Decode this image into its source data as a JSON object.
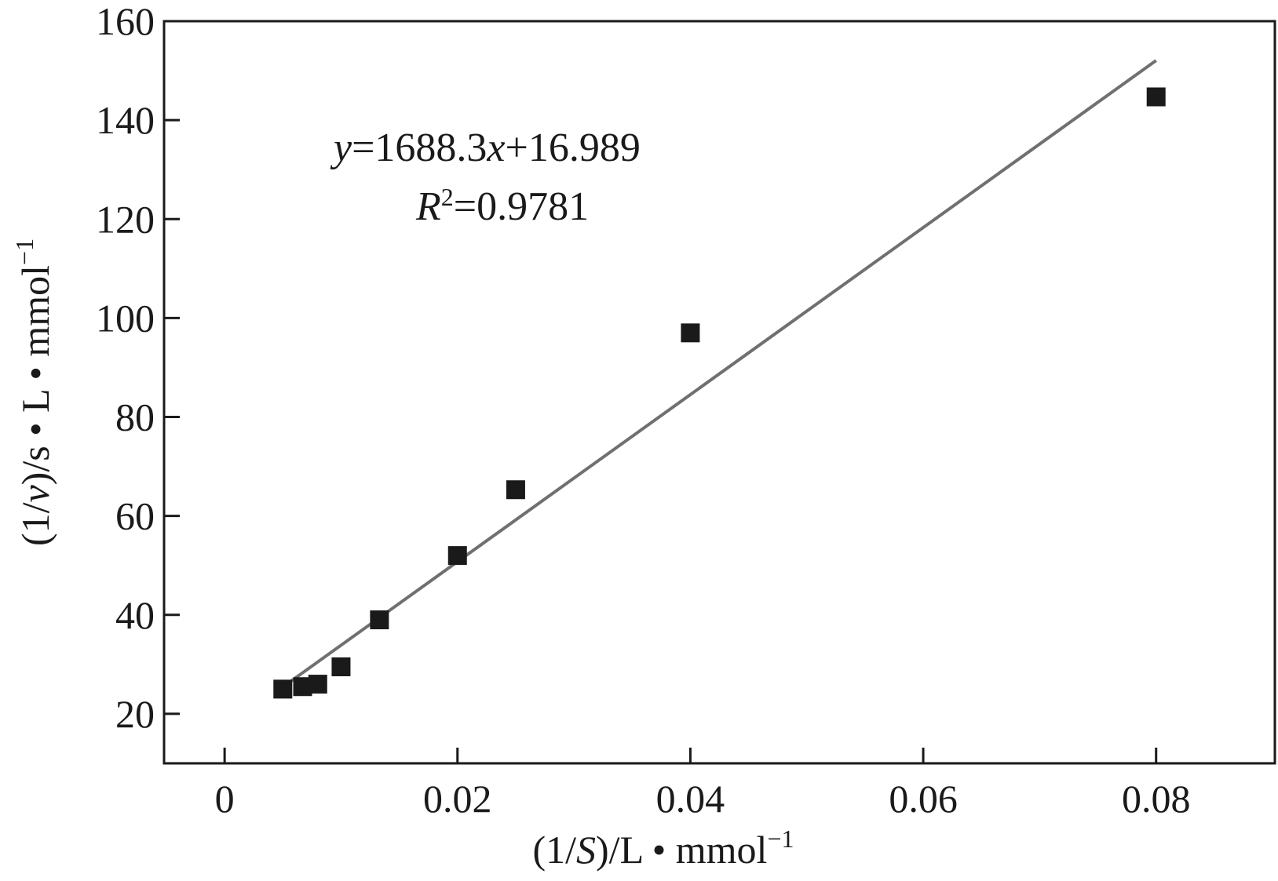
{
  "chart_data": {
    "type": "scatter",
    "xlim": [
      -0.0052,
      0.0902
    ],
    "ylim": [
      10,
      160
    ],
    "x_ticks": [
      0,
      0.02,
      0.04,
      0.06,
      0.08
    ],
    "x_tick_labels": [
      "0",
      "0.02",
      "0.04",
      "0.06",
      "0.08"
    ],
    "y_ticks": [
      20,
      40,
      60,
      80,
      100,
      120,
      140,
      160
    ],
    "y_tick_labels": [
      "20",
      "40",
      "60",
      "80",
      "100",
      "120",
      "140",
      "160"
    ],
    "xlabel_parts": [
      "(1/",
      "S",
      ")/L • mmol",
      "−1"
    ],
    "ylabel_parts": [
      "(1/",
      "v",
      ")/s • L • mmol",
      "−1"
    ],
    "grid": false,
    "series": [
      {
        "marker": "square",
        "color": "#1a1a1a",
        "points": [
          {
            "x": 0.005,
            "y": 25
          },
          {
            "x": 0.0067,
            "y": 25.5
          },
          {
            "x": 0.008,
            "y": 26
          },
          {
            "x": 0.01,
            "y": 29.5
          },
          {
            "x": 0.0133,
            "y": 39
          },
          {
            "x": 0.02,
            "y": 52
          },
          {
            "x": 0.025,
            "y": 65.3
          },
          {
            "x": 0.04,
            "y": 97
          },
          {
            "x": 0.08,
            "y": 144.7
          }
        ]
      }
    ],
    "fit_line": {
      "slope": 1688.3,
      "intercept": 16.989,
      "x_range": [
        0.005,
        0.08
      ],
      "color": "#707070"
    },
    "annotation": {
      "equation_parts": [
        "y",
        "=1688.3",
        "x",
        "+16.989"
      ],
      "r2_parts": [
        "R",
        "2",
        "=0.9781"
      ]
    }
  }
}
